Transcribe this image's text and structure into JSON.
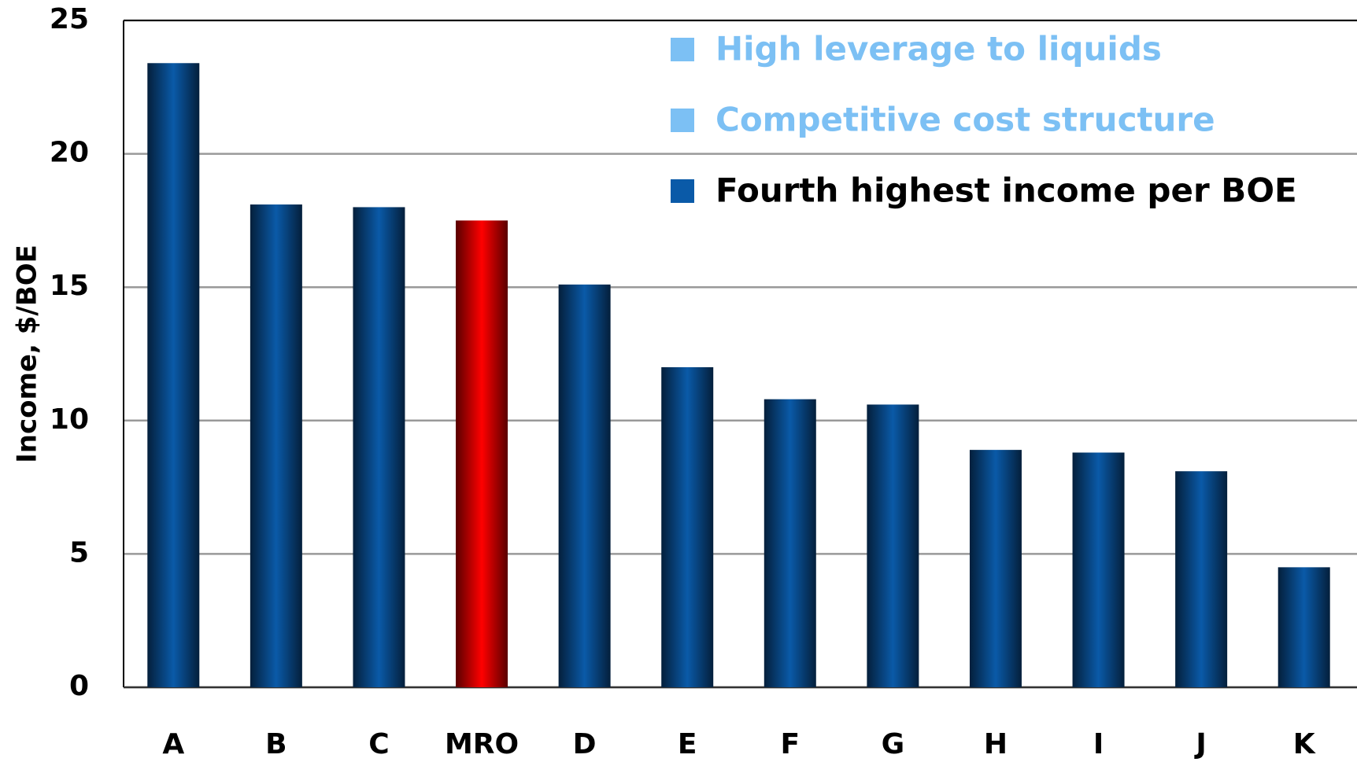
{
  "chart_data": {
    "type": "bar",
    "y_label": "Income, $/BOE",
    "categories": [
      "A",
      "B",
      "C",
      "MRO",
      "D",
      "E",
      "F",
      "G",
      "H",
      "I",
      "J",
      "K"
    ],
    "values": [
      23.4,
      18.1,
      18.0,
      17.5,
      15.1,
      12.0,
      10.8,
      10.6,
      8.9,
      8.8,
      8.1,
      4.5
    ],
    "colors": [
      "#0a5aa8",
      "#0a5aa8",
      "#0a5aa8",
      "#ff0000",
      "#0a5aa8",
      "#0a5aa8",
      "#0a5aa8",
      "#0a5aa8",
      "#0a5aa8",
      "#0a5aa8",
      "#0a5aa8",
      "#0a5aa8"
    ],
    "ylim": [
      0,
      25
    ],
    "yticks": [
      0,
      5,
      10,
      15,
      20,
      25
    ],
    "grid": true,
    "annotations": [
      {
        "text": "High leverage to liquids",
        "color": "#7cc0f4"
      },
      {
        "text": "Competitive cost structure",
        "color": "#7cc0f4"
      },
      {
        "text": "Fourth highest income per BOE",
        "color": "#0a5aa8"
      }
    ]
  }
}
